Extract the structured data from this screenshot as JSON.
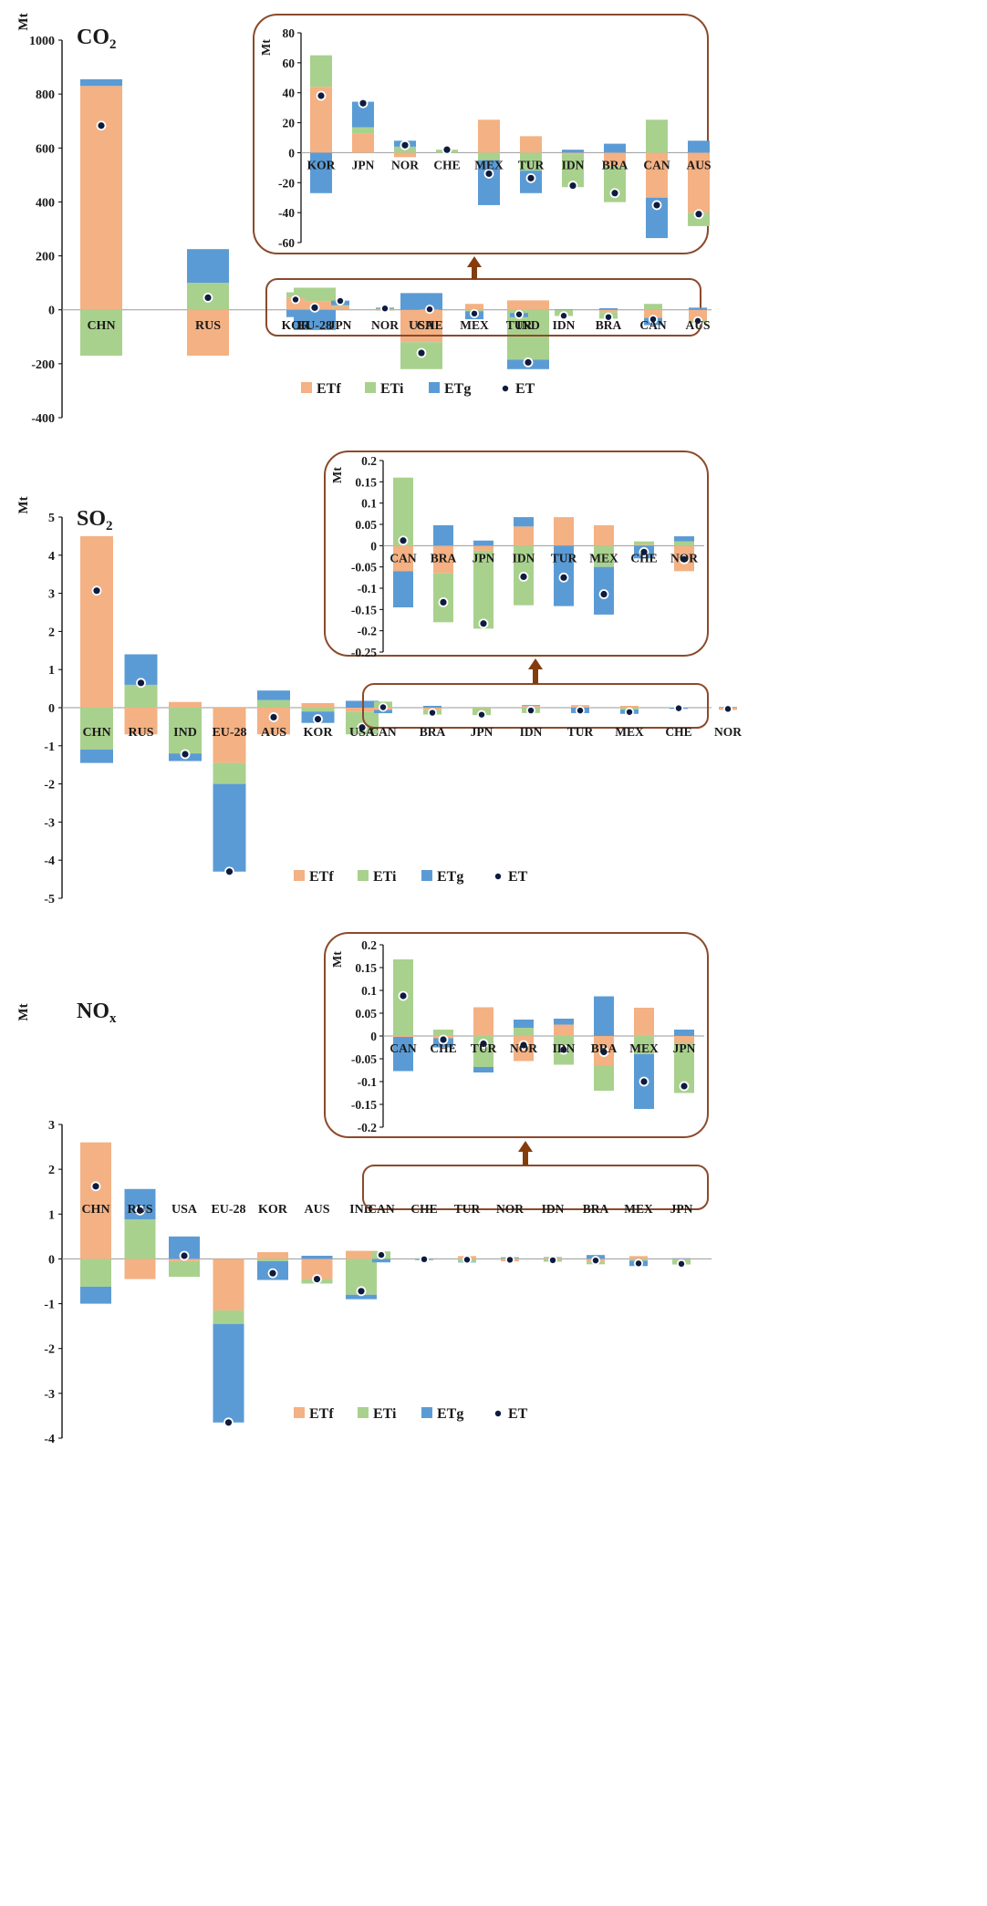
{
  "colors": {
    "ETf": "#F4B183",
    "ETi": "#A9D18E",
    "ETg": "#5B9BD5",
    "ET": "#0D1B3E",
    "frame": "#8B4A2B",
    "arrow": "#843C0C",
    "axis": "#000000",
    "text": "#1a1a1a"
  },
  "chart_data": [
    {
      "type": "bar",
      "id": "co2",
      "title": "CO",
      "title_sub": "2",
      "ylabel": "Mt",
      "ylim": [
        -400,
        1000
      ],
      "ticks": [
        1000,
        800,
        600,
        400,
        200,
        0,
        -200,
        -400
      ],
      "categories": [
        "CHN",
        "RUS",
        "EU-28",
        "USA",
        "IND"
      ],
      "series": [
        {
          "name": "ETf",
          "values": [
            830,
            -170,
            30,
            -120,
            35
          ]
        },
        {
          "name": "ETi",
          "values": [
            -170,
            100,
            52,
            -100,
            -185
          ]
        },
        {
          "name": "ETg",
          "values": [
            25,
            125,
            -75,
            62,
            -35
          ]
        }
      ],
      "ET": [
        683,
        45,
        8,
        -160,
        -195
      ],
      "small_categories": [
        "KOR",
        "JPN",
        "NOR",
        "CHE",
        "MEX",
        "TUR",
        "IDN",
        "BRA",
        "CAN",
        "AUS"
      ],
      "inset": {
        "ylabel": "Mt",
        "ylim": [
          -60,
          80
        ],
        "ticks": [
          80,
          60,
          40,
          20,
          0,
          -20,
          -40,
          -60
        ],
        "categories": [
          "KOR",
          "JPN",
          "NOR",
          "CHE",
          "MEX",
          "TUR",
          "IDN",
          "BRA",
          "CAN",
          "AUS"
        ],
        "series": [
          {
            "name": "ETf",
            "values": [
              44,
              13,
              -3,
              0,
              22,
              11,
              -1,
              -9,
              -30,
              -40
            ]
          },
          {
            "name": "ETi",
            "values": [
              21,
              4,
              4,
              2,
              -5,
              -12,
              -22,
              -24,
              22,
              -9
            ]
          },
          {
            "name": "ETg",
            "values": [
              -27,
              17,
              4,
              0,
              -30,
              -15,
              2,
              6,
              -27,
              8
            ]
          }
        ],
        "ET": [
          38,
          33,
          5,
          2,
          -14,
          -17,
          -22,
          -27,
          -35,
          -41
        ]
      },
      "legend": [
        "ETf",
        "ETi",
        "ETg",
        "ET"
      ]
    },
    {
      "type": "bar",
      "id": "so2",
      "title": "SO",
      "title_sub": "2",
      "ylabel": "Mt",
      "ylim": [
        -5,
        5
      ],
      "ticks": [
        5,
        4,
        3,
        2,
        1,
        0,
        -1,
        -2,
        -3,
        -4,
        -5
      ],
      "categories": [
        "CHN",
        "RUS",
        "IND",
        "EU-28",
        "AUS",
        "KOR",
        "USA"
      ],
      "series": [
        {
          "name": "ETf",
          "values": [
            4.5,
            -0.7,
            0.15,
            -1.45,
            -0.7,
            0.12,
            -0.1
          ]
        },
        {
          "name": "ETi",
          "values": [
            -1.1,
            0.6,
            -1.2,
            -0.55,
            0.2,
            -0.1,
            -0.6
          ]
        },
        {
          "name": "ETg",
          "values": [
            -0.35,
            0.8,
            -0.2,
            -2.3,
            0.25,
            -0.3,
            0.18
          ]
        }
      ],
      "ET": [
        3.07,
        0.65,
        -1.22,
        -4.3,
        -0.25,
        -0.3,
        -0.52
      ],
      "small_categories": [
        "CAN",
        "BRA",
        "JPN",
        "IDN",
        "TUR",
        "MEX",
        "CHE",
        "NOR"
      ],
      "inset": {
        "ylabel": "Mt",
        "ylim": [
          -0.25,
          0.2
        ],
        "ticks": [
          0.2,
          0.15,
          0.1,
          0.05,
          0,
          -0.05,
          -0.1,
          -0.15,
          -0.2,
          -0.25
        ],
        "categories": [
          "CAN",
          "BRA",
          "JPN",
          "IDN",
          "TUR",
          "MEX",
          "CHE",
          "NOR"
        ],
        "series": [
          {
            "name": "ETf",
            "values": [
              -0.06,
              -0.065,
              -0.012,
              0.045,
              0.067,
              0.048,
              0.002,
              -0.06
            ]
          },
          {
            "name": "ETi",
            "values": [
              0.16,
              -0.115,
              -0.183,
              -0.14,
              0,
              -0.05,
              0.008,
              0.01
            ]
          },
          {
            "name": "ETg",
            "values": [
              -0.085,
              0.048,
              0.012,
              0.022,
              -0.142,
              -0.112,
              -0.03,
              0.012
            ]
          }
        ],
        "ET": [
          0.012,
          -0.133,
          -0.183,
          -0.073,
          -0.075,
          -0.114,
          -0.015,
          -0.032
        ]
      },
      "legend": [
        "ETf",
        "ETi",
        "ETg",
        "ET"
      ]
    },
    {
      "type": "bar",
      "id": "nox",
      "title": "NO",
      "title_sub": "x",
      "ylabel": "Mt",
      "ylim": [
        -4,
        3
      ],
      "ticks": [
        3,
        2,
        1,
        0,
        -1,
        -2,
        -3,
        -4
      ],
      "categories": [
        "CHN",
        "RUS",
        "USA",
        "EU-28",
        "KOR",
        "AUS",
        "IND"
      ],
      "series": [
        {
          "name": "ETf",
          "values": [
            2.6,
            -0.45,
            -0.05,
            -1.15,
            0.15,
            -0.45,
            0.18
          ]
        },
        {
          "name": "ETi",
          "values": [
            -0.62,
            0.88,
            -0.35,
            -0.3,
            -0.05,
            -0.1,
            -0.8
          ]
        },
        {
          "name": "ETg",
          "values": [
            -0.38,
            0.68,
            0.5,
            -2.2,
            -0.42,
            0.07,
            -0.1
          ]
        }
      ],
      "ET": [
        1.62,
        1.08,
        0.07,
        -3.65,
        -0.32,
        -0.45,
        -0.72
      ],
      "small_categories": [
        "CAN",
        "CHE",
        "TUR",
        "NOR",
        "IDN",
        "BRA",
        "MEX",
        "JPN"
      ],
      "inset": {
        "ylabel": "Mt",
        "ylim": [
          -0.2,
          0.2
        ],
        "ticks": [
          0.2,
          0.15,
          0.1,
          0.05,
          0,
          -0.05,
          -0.1,
          -0.15,
          -0.2
        ],
        "categories": [
          "CAN",
          "CHE",
          "TUR",
          "NOR",
          "IDN",
          "BRA",
          "MEX",
          "JPN"
        ],
        "series": [
          {
            "name": "ETf",
            "values": [
              -0.002,
              -0.005,
              0.063,
              -0.055,
              0.025,
              -0.065,
              0.062,
              -0.015
            ]
          },
          {
            "name": "ETi",
            "values": [
              0.168,
              0.014,
              -0.068,
              0.018,
              -0.063,
              -0.055,
              -0.04,
              -0.11
            ]
          },
          {
            "name": "ETg",
            "values": [
              -0.075,
              -0.02,
              -0.012,
              0.018,
              0.013,
              0.087,
              -0.12,
              0.014
            ]
          }
        ],
        "ET": [
          0.088,
          -0.008,
          -0.017,
          -0.02,
          -0.03,
          -0.035,
          -0.1,
          -0.11
        ]
      },
      "legend": [
        "ETf",
        "ETi",
        "ETg",
        "ET"
      ]
    }
  ]
}
